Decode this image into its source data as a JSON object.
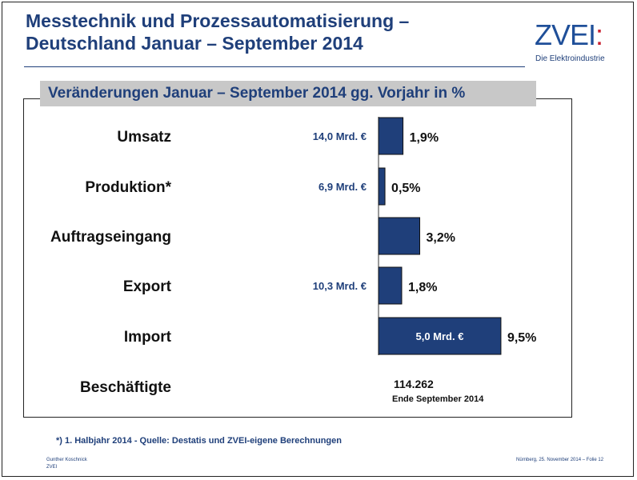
{
  "header": {
    "title_line1": "Messtechnik und Prozessautomatisierung –",
    "title_line2": "Deutschland Januar – September 2014"
  },
  "logo": {
    "word": "ZVEI",
    "colon": ":",
    "tagline": "Die Elektroindustrie"
  },
  "colors": {
    "bar": "#1f3f7a",
    "title": "#1f3f7a",
    "band": "#c8c8c8"
  },
  "chart_data": {
    "type": "bar",
    "orientation": "horizontal",
    "title": "Veränderungen Januar – September 2014 gg. Vorjahr in %",
    "categories": [
      "Umsatz",
      "Produktion*",
      "Auftragseingang",
      "Export",
      "Import"
    ],
    "values": [
      1.9,
      0.5,
      3.2,
      1.8,
      9.5
    ],
    "value_labels": [
      "1,9%",
      "0,5%",
      "3,2%",
      "1,8%",
      "9,5%"
    ],
    "annotations": [
      "14,0 Mrd. €",
      "6,9 Mrd. €",
      "",
      "10,3 Mrd. €",
      "5,0 Mrd. €"
    ],
    "extra_row": {
      "label": "Beschäftigte",
      "value": "114.262",
      "note": "Ende September 2014"
    }
  },
  "footer": {
    "footnote": "*) 1. Halbjahr 2014  - Quelle: Destatis und ZVEI-eigene Berechnungen",
    "author": "Gunther Koschnick",
    "org": "ZVEI",
    "date_slide": "Nürnberg, 25. November 2014  –   Folie 12"
  }
}
